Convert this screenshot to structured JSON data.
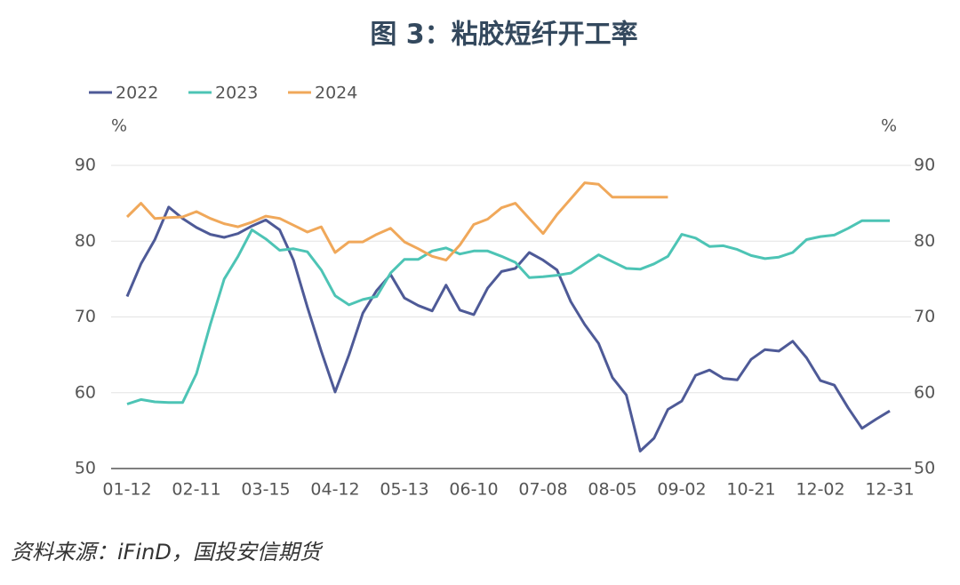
{
  "chart_data": {
    "type": "line",
    "title": "图 3：粘胶短纤开工率",
    "source": "资料来源：iFinD，国投安信期货",
    "y_unit": "%",
    "y2_unit": "%",
    "categories": [
      "01-12",
      null,
      null,
      null,
      null,
      "02-11",
      null,
      null,
      null,
      null,
      "03-15",
      null,
      null,
      null,
      null,
      "04-12",
      null,
      null,
      null,
      null,
      "05-13",
      null,
      null,
      null,
      null,
      "06-10",
      null,
      null,
      null,
      null,
      "07-08",
      null,
      null,
      null,
      null,
      "08-05",
      null,
      null,
      null,
      null,
      "09-02",
      null,
      null,
      null,
      null,
      "10-21",
      null,
      null,
      null,
      null,
      "12-02",
      null,
      null,
      null,
      null,
      "12-31"
    ],
    "series": [
      {
        "name": "2022",
        "color": "#4e5a97",
        "values": [
          72.7,
          77.0,
          80.2,
          84.5,
          83.0,
          81.8,
          80.9,
          80.5,
          81.0,
          82.0,
          82.8,
          81.5,
          77.5,
          71.3,
          65.5,
          60.1,
          65.0,
          70.5,
          73.5,
          75.6,
          72.5,
          71.5,
          70.8,
          74.2,
          70.9,
          70.3,
          73.8,
          76.0,
          76.4,
          78.5,
          77.5,
          76.2,
          72.0,
          69.0,
          66.5,
          62.0,
          59.7,
          52.3,
          54.0,
          57.8,
          58.9,
          62.3,
          63.0,
          61.9,
          61.7,
          64.4,
          65.7,
          65.5,
          66.8,
          64.6,
          61.6,
          61.0,
          58.0,
          55.3,
          56.5,
          57.6
        ]
      },
      {
        "name": "2023",
        "color": "#4dc4b5",
        "values": [
          58.5,
          59.1,
          58.8,
          58.7,
          58.7,
          62.5,
          69.0,
          75.0,
          78.0,
          81.5,
          80.3,
          78.8,
          79.0,
          78.6,
          76.2,
          72.8,
          71.6,
          72.3,
          72.7,
          75.8,
          77.6,
          77.6,
          78.7,
          79.1,
          78.3,
          78.7,
          78.7,
          78.0,
          77.2,
          75.2,
          75.3,
          75.5,
          75.8,
          77.0,
          78.2,
          77.3,
          76.4,
          76.3,
          77.0,
          78.0,
          80.9,
          80.4,
          79.3,
          79.4,
          78.9,
          78.1,
          77.7,
          77.9,
          78.5,
          80.2,
          80.6,
          80.8,
          81.7,
          82.7,
          82.7,
          82.7
        ]
      },
      {
        "name": "2024",
        "color": "#f0a85a",
        "values": [
          83.2,
          85.0,
          83.0,
          83.1,
          83.2,
          83.9,
          83.0,
          82.3,
          81.9,
          82.5,
          83.3,
          83.0,
          82.1,
          81.2,
          81.9,
          78.5,
          79.9,
          79.9,
          80.9,
          81.7,
          79.9,
          79.0,
          78.0,
          77.5,
          79.5,
          82.2,
          82.9,
          84.4,
          85.0,
          83.0,
          81.0,
          83.5,
          85.6,
          87.7,
          87.5,
          85.8,
          85.8,
          85.8,
          85.8,
          85.8,
          null,
          null,
          null,
          null,
          null,
          null,
          null,
          null,
          null,
          null,
          null,
          null,
          null,
          null,
          null,
          null
        ]
      }
    ],
    "ylim": [
      50,
      90
    ],
    "yticks": [
      50,
      60,
      70,
      80,
      90
    ],
    "y2lim": [
      50,
      90
    ],
    "y2ticks": [
      50,
      60,
      70,
      80,
      90
    ],
    "grid": true,
    "legend": "top-left"
  }
}
